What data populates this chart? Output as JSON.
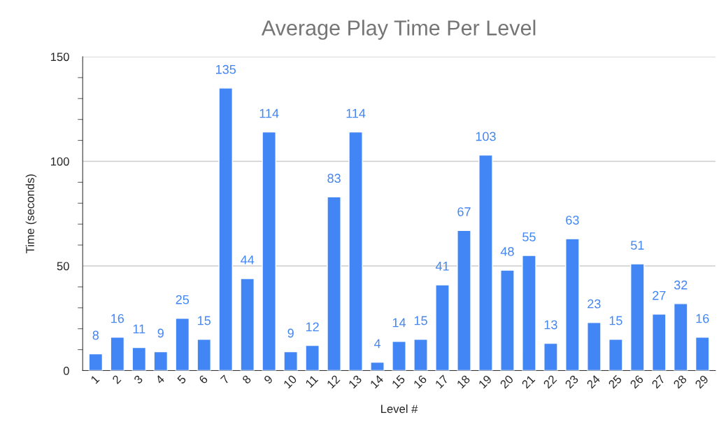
{
  "chart_data": {
    "type": "bar",
    "title": "Average Play Time Per Level",
    "xlabel": "Level #",
    "ylabel": "Time (seconds)",
    "categories": [
      "1",
      "2",
      "3",
      "4",
      "5",
      "6",
      "7",
      "8",
      "9",
      "10",
      "11",
      "12",
      "13",
      "14",
      "15",
      "16",
      "17",
      "18",
      "19",
      "20",
      "21",
      "22",
      "23",
      "24",
      "25",
      "26",
      "27",
      "28",
      "29"
    ],
    "values": [
      8,
      16,
      11,
      9,
      25,
      15,
      135,
      44,
      114,
      9,
      12,
      83,
      114,
      4,
      14,
      15,
      41,
      67,
      103,
      48,
      55,
      13,
      63,
      23,
      15,
      51,
      27,
      32,
      16
    ],
    "color": "#4285f4",
    "ylim": [
      0,
      150
    ],
    "yticks": [
      0,
      50,
      100,
      150
    ],
    "grid": "y",
    "data_labels": true,
    "legend": false
  }
}
